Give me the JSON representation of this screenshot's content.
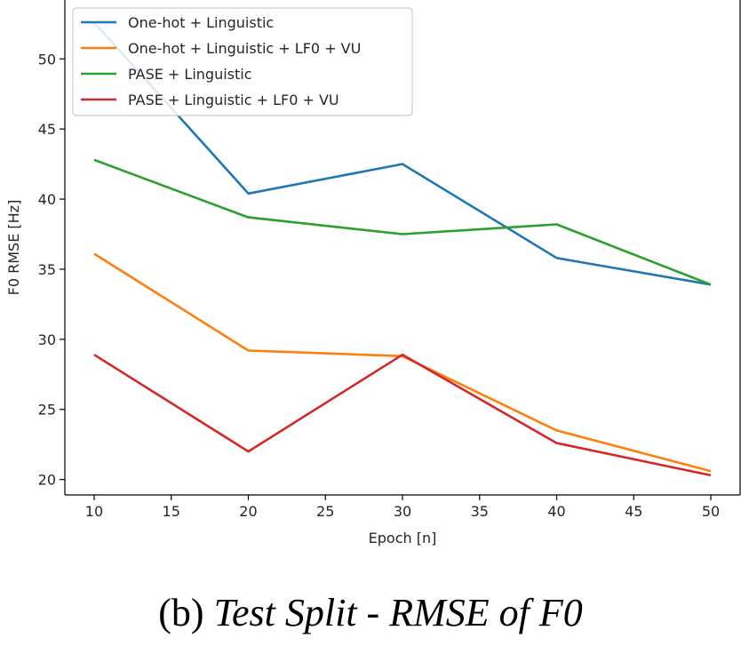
{
  "chart_data": {
    "type": "line",
    "x": [
      10,
      20,
      30,
      40,
      50
    ],
    "xlabel": "Epoch [n]",
    "ylabel": "F0 RMSE [Hz]",
    "xlim": [
      8.1,
      51.9
    ],
    "ylim": [
      18.9,
      54.2
    ],
    "xticks": [
      10,
      15,
      20,
      25,
      30,
      35,
      40,
      45,
      50
    ],
    "yticks": [
      20,
      25,
      30,
      35,
      40,
      45,
      50
    ],
    "grid": false,
    "legend_position": "top-left",
    "series": [
      {
        "name": "One-hot + Linguistic",
        "color": "#1f77b4",
        "values": [
          52.6,
          40.4,
          42.5,
          35.8,
          33.9
        ]
      },
      {
        "name": "One-hot + Linguistic + LF0 + VU",
        "color": "#ff7f0e",
        "values": [
          36.1,
          29.2,
          28.8,
          23.5,
          20.6
        ]
      },
      {
        "name": "PASE + Linguistic",
        "color": "#2ca02c",
        "values": [
          42.8,
          38.7,
          37.5,
          38.2,
          33.9
        ]
      },
      {
        "name": "PASE + Linguistic + LF0 + VU",
        "color": "#d62728",
        "values": [
          28.9,
          22.0,
          28.9,
          22.6,
          20.3
        ]
      }
    ]
  },
  "caption": {
    "prefix": "(b) ",
    "italic": "Test Split - RMSE of F0"
  }
}
